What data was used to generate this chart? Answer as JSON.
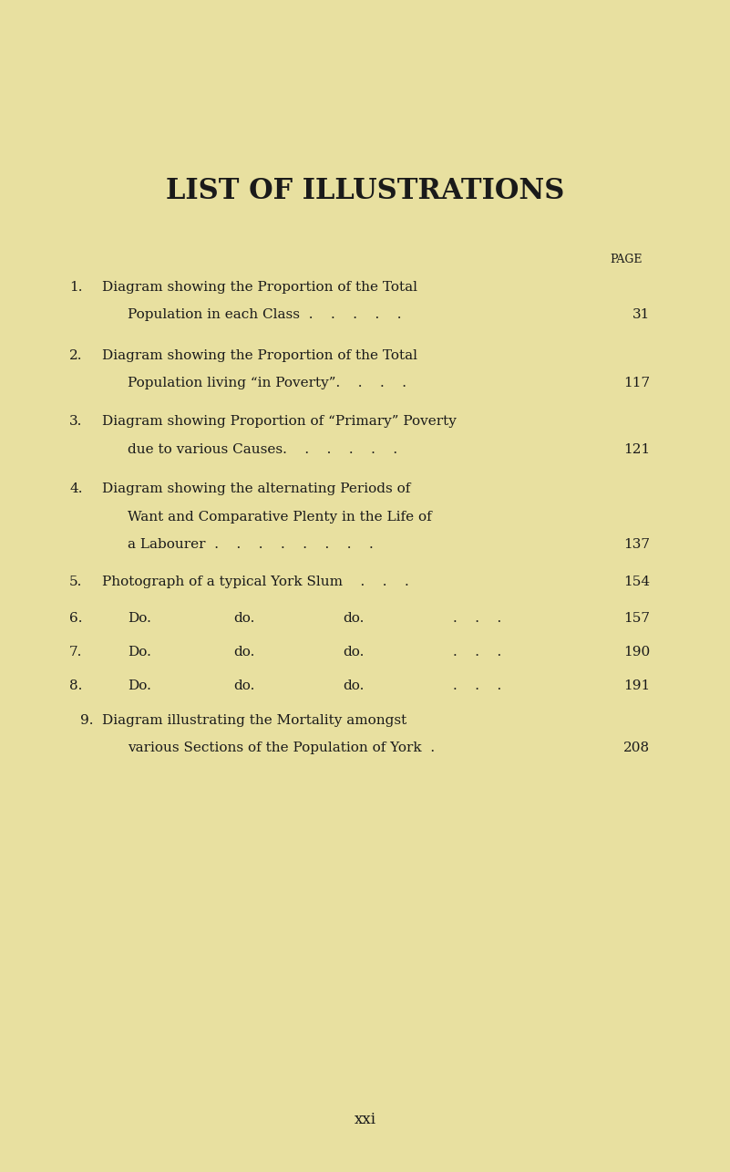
{
  "background_color": "#e8e0a0",
  "title": "LIST OF ILLUSTRATIONS",
  "title_fontsize": 22,
  "page_label": "PAGE",
  "footer": "xxi",
  "entries": [
    {
      "number": "1.",
      "line1": "Diagram showing the Proportion of the Total",
      "line2": "Population in each Class . . . . .",
      "page": "31"
    },
    {
      "number": "2.",
      "line1": "Diagram showing the Proportion of the Total",
      "line2": "Population living “in Poverty”. . . .",
      "page": "117"
    },
    {
      "number": "3.",
      "line1": "Diagram showing Proportion of “Primary” Poverty",
      "line2": "due to various Causes. . . . . .",
      "page": "121"
    },
    {
      "number": "4.",
      "line1": "Diagram showing the alternating Periods of",
      "line2": "Want and Comparative Plenty in the Life of",
      "line3": "a Labourer . . . . . . . .",
      "page": "137"
    },
    {
      "number": "5.",
      "line1": "Photograph of a typical York Slum . . .",
      "page": "154"
    },
    {
      "number": "6.",
      "line1": "Do.        do.        do.      . . .",
      "page": "157"
    },
    {
      "number": "7.",
      "line1": "Do.        do.        do.      . . .",
      "page": "190"
    },
    {
      "number": "8.",
      "line1": "Do.        do.        do.      . . .",
      "page": "191"
    },
    {
      "number": "9.",
      "line1": "Diagram illustrating the Mortality amongst",
      "line2": "various Sections of the Population of York  .",
      "page": "208"
    }
  ]
}
